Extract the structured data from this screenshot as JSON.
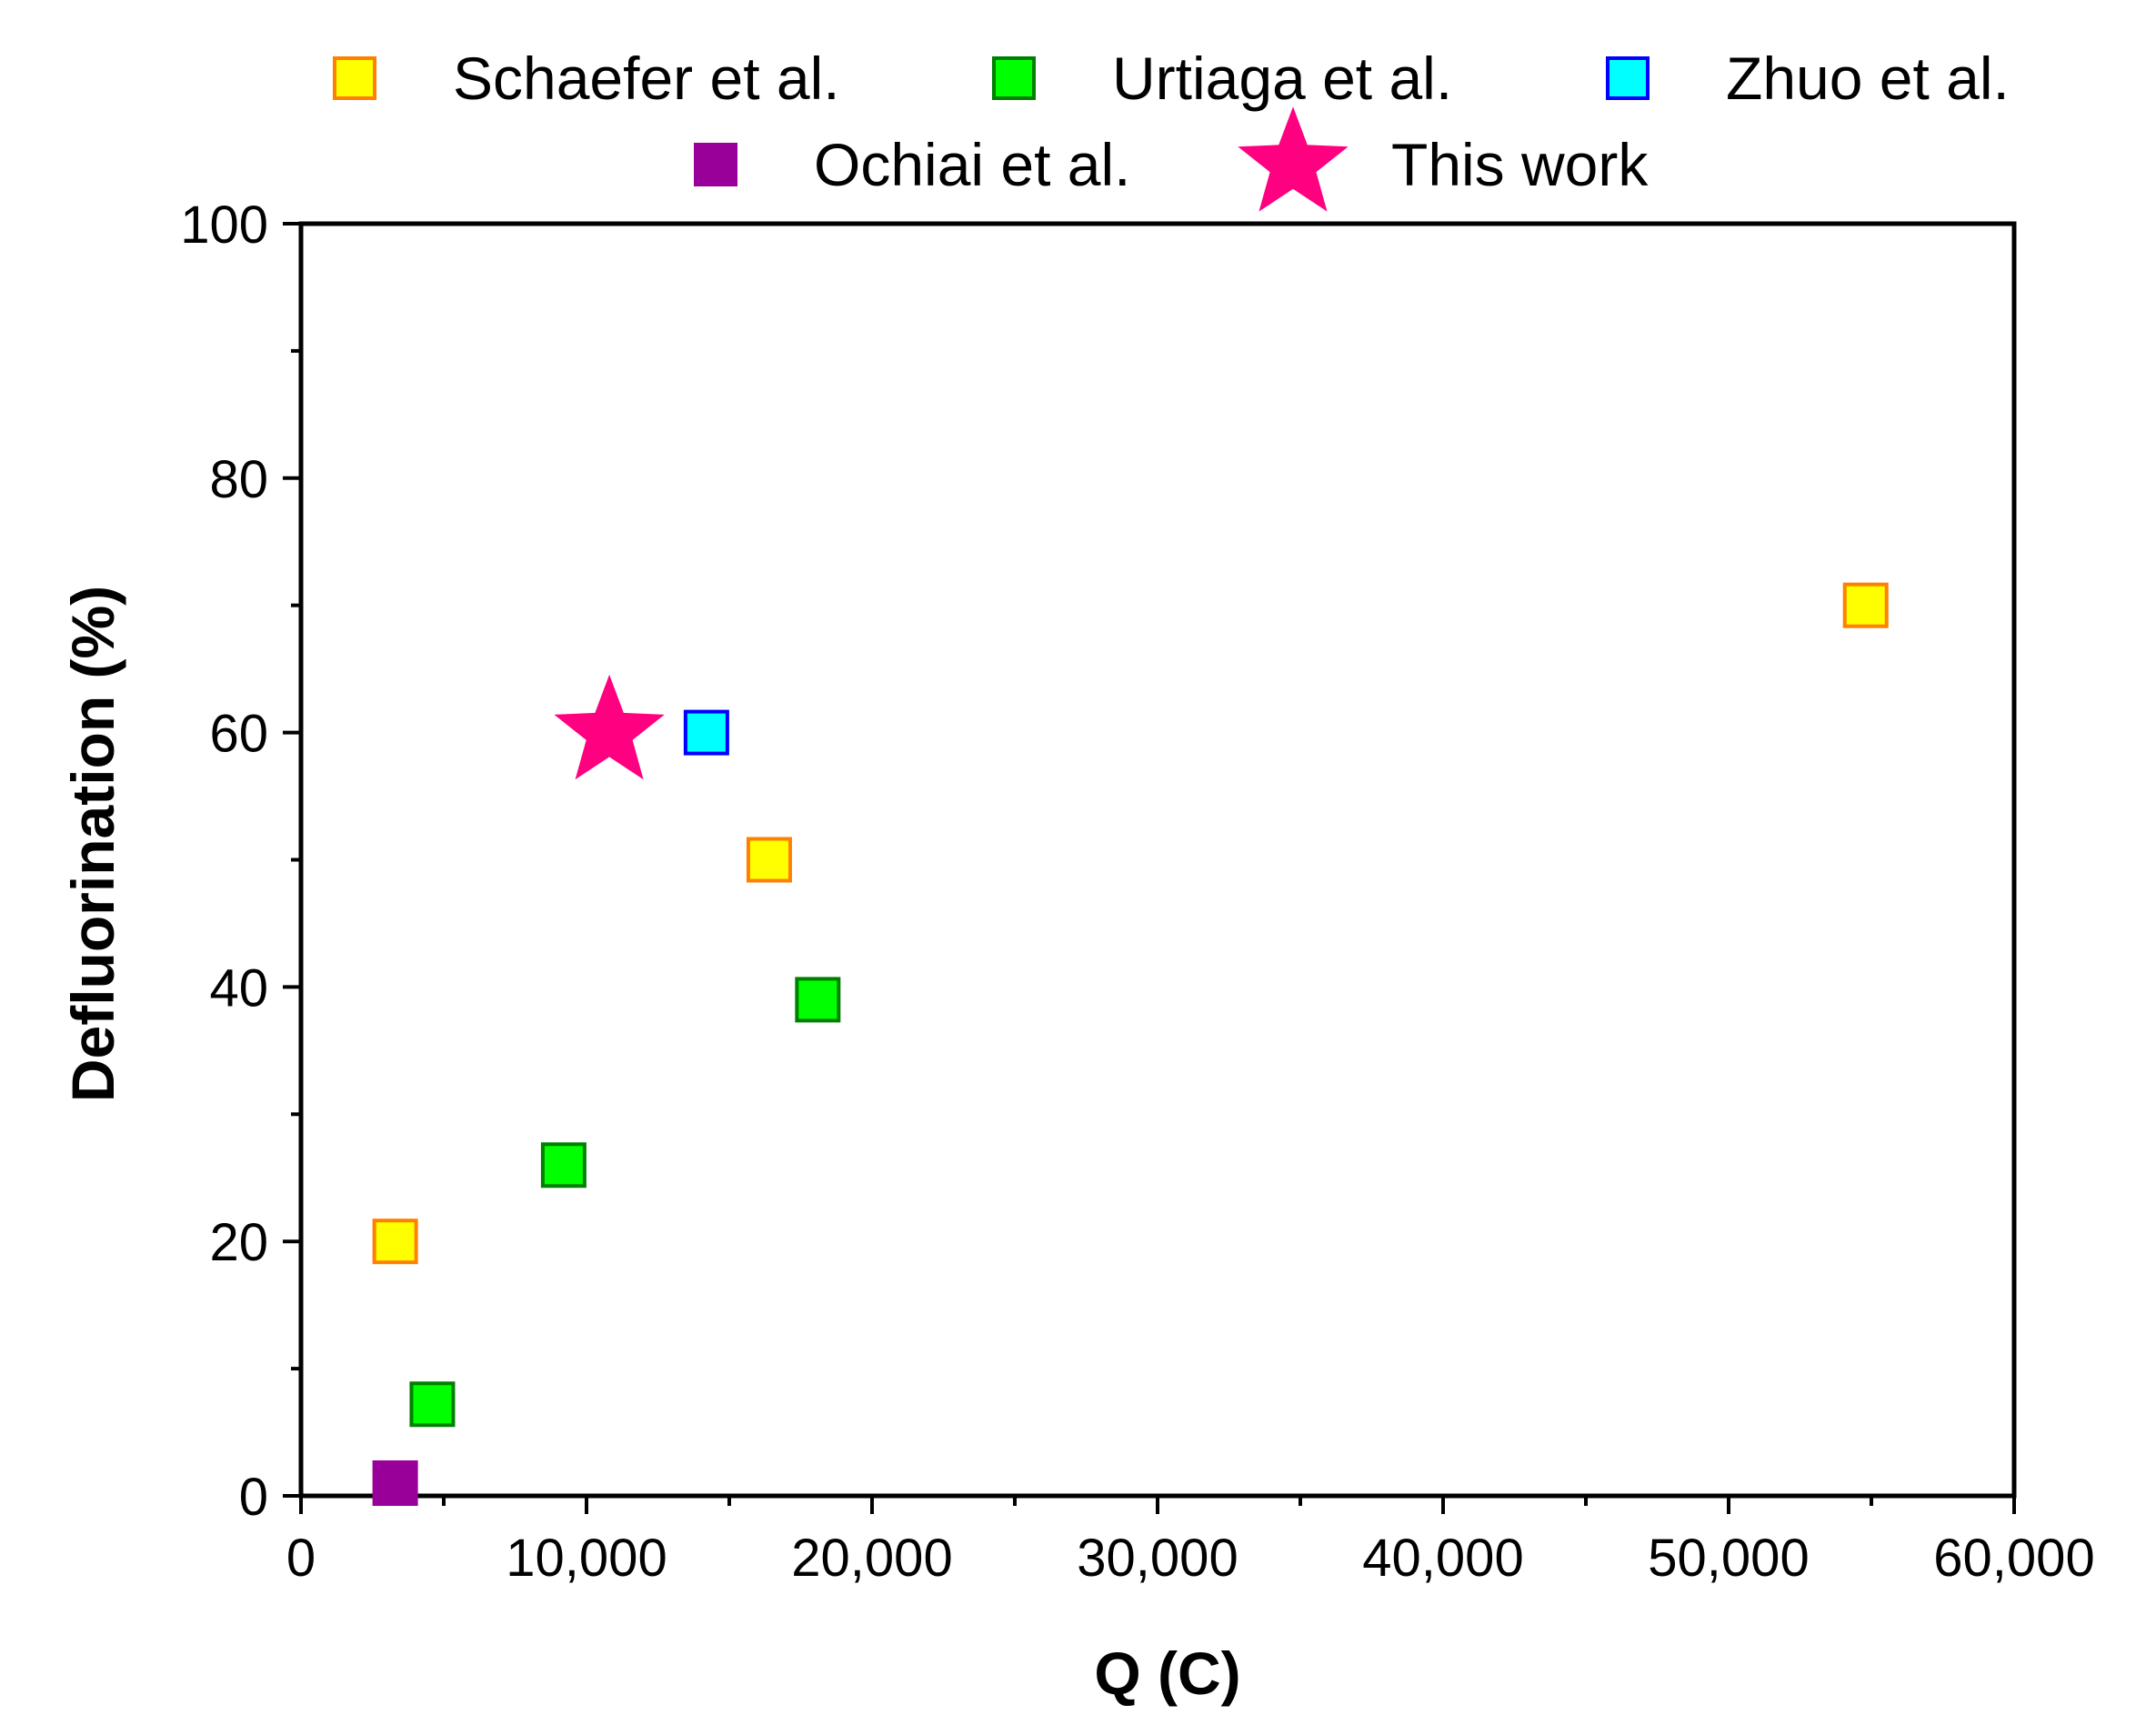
{
  "chart_data": {
    "type": "scatter",
    "xlabel": "Q (C)",
    "ylabel": "Defluorination (%)",
    "xlim": [
      0,
      60000
    ],
    "ylim": [
      0,
      100
    ],
    "x_ticks": [
      0,
      10000,
      20000,
      30000,
      40000,
      50000,
      60000
    ],
    "x_tick_labels": [
      "0",
      "10,000",
      "20,000",
      "30,000",
      "40,000",
      "50,000",
      "60,000"
    ],
    "x_minor_ticks": [
      5000,
      15000,
      25000,
      35000,
      45000,
      55000
    ],
    "y_ticks": [
      0,
      20,
      40,
      60,
      80,
      100
    ],
    "y_tick_labels": [
      "0",
      "20",
      "40",
      "60",
      "80",
      "100"
    ],
    "y_minor_ticks": [
      10,
      30,
      50,
      70,
      90
    ],
    "grid": false,
    "legend_position": "top",
    "series": [
      {
        "name": "Schaefer et al.",
        "marker": "square",
        "fill": "#ffff00",
        "stroke": "#ff8000",
        "points": [
          {
            "x": 3300,
            "y": 20
          },
          {
            "x": 16400,
            "y": 50
          },
          {
            "x": 54800,
            "y": 70
          }
        ]
      },
      {
        "name": "Urtiaga et al.",
        "marker": "square",
        "fill": "#00ff00",
        "stroke": "#008000",
        "points": [
          {
            "x": 4600,
            "y": 7.2
          },
          {
            "x": 9200,
            "y": 26
          },
          {
            "x": 18100,
            "y": 39
          }
        ]
      },
      {
        "name": "Zhuo et al.",
        "marker": "square",
        "fill": "#00ffff",
        "stroke": "#0000ff",
        "points": [
          {
            "x": 14200,
            "y": 60
          }
        ]
      },
      {
        "name": "Ochiai et al.",
        "marker": "square",
        "fill": "#990099",
        "stroke": "#990099",
        "points": [
          {
            "x": 3300,
            "y": 1
          }
        ]
      },
      {
        "name": "This work",
        "marker": "star",
        "fill": "#ff0080",
        "stroke": "#ff0080",
        "points": [
          {
            "x": 10800,
            "y": 60
          }
        ]
      }
    ]
  }
}
